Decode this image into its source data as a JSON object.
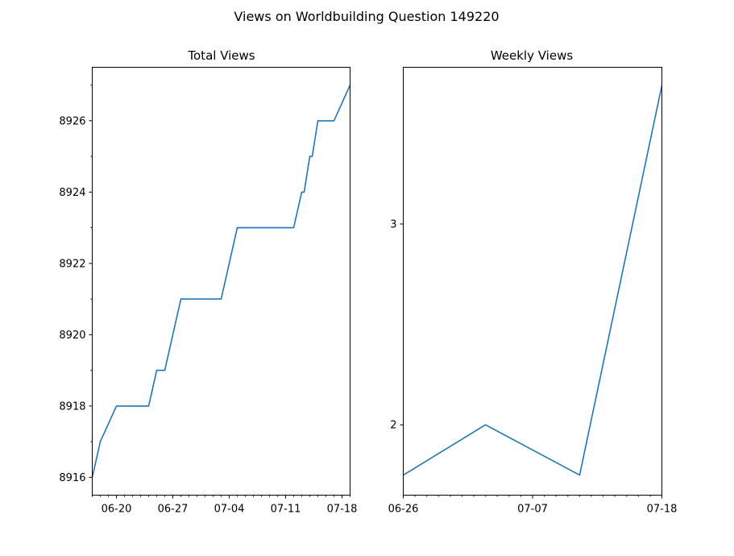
{
  "figure_title": "Views on Worldbuilding Question 149220",
  "chart_data": [
    {
      "type": "line",
      "title": "Total Views",
      "xlabel": "",
      "ylabel": "",
      "x": [
        "06-17",
        "06-18",
        "06-20",
        "06-24",
        "06-25",
        "06-26",
        "06-28",
        "07-03",
        "07-05",
        "07-12",
        "07-13",
        "07-13",
        "07-14",
        "07-14",
        "07-15",
        "07-16",
        "07-17",
        "07-19"
      ],
      "values": [
        8916,
        8917,
        8918,
        8918,
        8919,
        8919,
        8921,
        8921,
        8923,
        8923,
        8924,
        8924,
        8925,
        8925,
        8926,
        8926,
        8926,
        8927
      ],
      "xlim": [
        "06-17",
        "07-19"
      ],
      "ylim": [
        8915.5,
        8927.5
      ],
      "x_ticks": [
        "06-20",
        "06-27",
        "07-04",
        "07-11",
        "07-18"
      ],
      "y_ticks": [
        8916,
        8918,
        8920,
        8922,
        8924,
        8926
      ],
      "color": "#1f77b4"
    },
    {
      "type": "line",
      "title": "Weekly Views",
      "xlabel": "",
      "ylabel": "",
      "x": [
        "06-26",
        "07-03",
        "07-11",
        "07-18"
      ],
      "values": [
        1.75,
        2.0,
        1.75,
        3.69
      ],
      "xlim": [
        "06-26",
        "07-18"
      ],
      "ylim": [
        1.65,
        3.78
      ],
      "x_ticks": [
        "06-26",
        "07-07",
        "07-18"
      ],
      "y_ticks": [
        2,
        3
      ],
      "color": "#1f77b4"
    }
  ]
}
